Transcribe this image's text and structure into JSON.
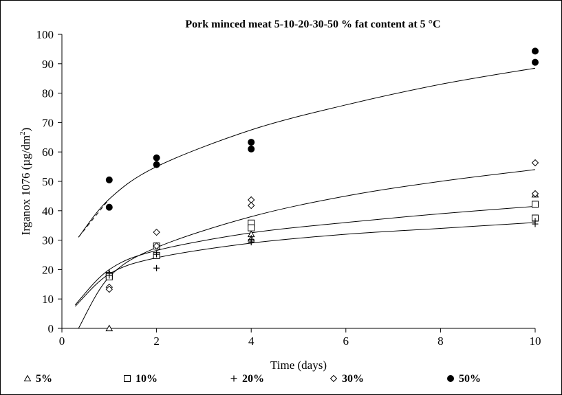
{
  "chart_data": {
    "type": "scatter",
    "title": "Pork minced meat 5-10-20-30-50 %  fat content at 5 °C",
    "xlabel": "Time (days)",
    "ylabel": "Irganox 1076 (µg/dm2)",
    "ylabel_main": "Irganox 1076 (µg/dm",
    "ylabel_sup": "2",
    "ylabel_close": ")",
    "xlim": [
      0,
      10
    ],
    "ylim": [
      0,
      100
    ],
    "xticks": [
      0,
      2,
      4,
      6,
      8,
      10
    ],
    "yticks": [
      0,
      10,
      20,
      30,
      40,
      50,
      60,
      70,
      80,
      90,
      100
    ],
    "grid": false,
    "legend_position": "bottom",
    "series": [
      {
        "name": "5%",
        "marker": "triangle",
        "points": [
          [
            1,
            0
          ],
          [
            1,
            18.5
          ],
          [
            2,
            25
          ],
          [
            2,
            28
          ],
          [
            4,
            32
          ],
          [
            4,
            30.5
          ],
          [
            10,
            45.5
          ]
        ],
        "fit": [
          [
            0.28,
            8
          ],
          [
            1,
            20
          ],
          [
            2,
            26.5
          ],
          [
            4,
            32.5
          ],
          [
            6,
            36
          ],
          [
            8,
            39
          ],
          [
            10,
            41.5
          ]
        ]
      },
      {
        "name": "10%",
        "marker": "square",
        "points": [
          [
            1,
            18
          ],
          [
            1,
            17.5
          ],
          [
            2,
            28
          ],
          [
            2,
            24.8
          ],
          [
            4,
            35.8
          ],
          [
            4,
            34.2
          ],
          [
            10,
            42.2
          ],
          [
            10,
            37.5
          ]
        ],
        "fit": [
          [
            0.28,
            8
          ],
          [
            1,
            20
          ],
          [
            2,
            26.5
          ],
          [
            4,
            32.5
          ],
          [
            6,
            36
          ],
          [
            8,
            39
          ],
          [
            10,
            41.5
          ]
        ]
      },
      {
        "name": "20%",
        "marker": "plus",
        "points": [
          [
            1,
            19
          ],
          [
            1,
            18
          ],
          [
            2,
            20.5
          ],
          [
            2,
            25.2
          ],
          [
            4,
            30.2
          ],
          [
            4,
            29.3
          ],
          [
            10,
            35.5
          ],
          [
            10,
            36.5
          ]
        ],
        "fit": [
          [
            0.28,
            7.5
          ],
          [
            1,
            18.5
          ],
          [
            2,
            24
          ],
          [
            4,
            29
          ],
          [
            6,
            32
          ],
          [
            8,
            34
          ],
          [
            10,
            36
          ]
        ]
      },
      {
        "name": "30%",
        "marker": "diamond",
        "points": [
          [
            1,
            14
          ],
          [
            1,
            13.3
          ],
          [
            2,
            32.7
          ],
          [
            2,
            28
          ],
          [
            4,
            43.7
          ],
          [
            4,
            41.8
          ],
          [
            10,
            56.3
          ],
          [
            10,
            45.8
          ]
        ],
        "fit": [
          [
            0.35,
            0
          ],
          [
            1,
            17.5
          ],
          [
            2,
            27.5
          ],
          [
            4,
            38
          ],
          [
            6,
            45
          ],
          [
            8,
            50
          ],
          [
            10,
            54
          ]
        ]
      },
      {
        "name": "50%",
        "marker": "circle",
        "points": [
          [
            1,
            50.5
          ],
          [
            1,
            41.2
          ],
          [
            2,
            58
          ],
          [
            2,
            55.7
          ],
          [
            4,
            63.3
          ],
          [
            4,
            61
          ],
          [
            10,
            94.3
          ],
          [
            10,
            90.5
          ]
        ],
        "fit": [
          [
            0.35,
            31
          ],
          [
            1,
            44
          ],
          [
            2,
            55
          ],
          [
            4,
            67.5
          ],
          [
            6,
            76
          ],
          [
            8,
            83
          ],
          [
            10,
            88.5
          ]
        ]
      }
    ]
  }
}
